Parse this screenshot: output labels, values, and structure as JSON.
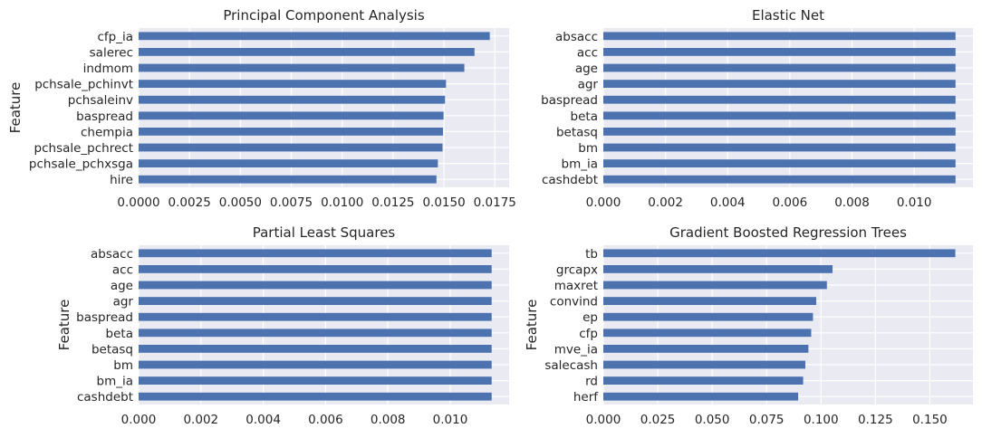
{
  "chart_data": [
    {
      "type": "bar",
      "orientation": "horizontal",
      "title": "Principal Component Analysis",
      "xlabel": "",
      "ylabel": "Feature",
      "categories": [
        "cfp_ia",
        "salerec",
        "indmom",
        "pchsale_pchinvt",
        "pchsaleinv",
        "baspread",
        "chempia",
        "pchsale_pchrect",
        "pchsale_pchxsga",
        "hire"
      ],
      "values": [
        0.01725,
        0.0165,
        0.016,
        0.0151,
        0.01505,
        0.01498,
        0.01495,
        0.01493,
        0.0147,
        0.01463
      ],
      "xlim": [
        0.0,
        0.0182
      ],
      "xticks": [
        0.0,
        0.0025,
        0.005,
        0.0075,
        0.01,
        0.0125,
        0.015,
        0.0175
      ],
      "xtick_labels": [
        "0.0000",
        "0.0025",
        "0.0050",
        "0.0075",
        "0.0100",
        "0.0125",
        "0.0150",
        "0.0175"
      ],
      "color": "#4c72b0",
      "grid": true
    },
    {
      "type": "bar",
      "orientation": "horizontal",
      "title": "Elastic Net",
      "xlabel": "",
      "ylabel": "",
      "categories": [
        "absacc",
        "acc",
        "age",
        "agr",
        "baspread",
        "beta",
        "betasq",
        "bm",
        "bm_ia",
        "cashdebt"
      ],
      "values": [
        0.01133,
        0.01133,
        0.01133,
        0.01133,
        0.01133,
        0.01133,
        0.01133,
        0.01133,
        0.01133,
        0.01133
      ],
      "xlim": [
        0.0,
        0.01189
      ],
      "xticks": [
        0.0,
        0.002,
        0.004,
        0.006,
        0.008,
        0.01
      ],
      "xtick_labels": [
        "0.000",
        "0.002",
        "0.004",
        "0.006",
        "0.008",
        "0.010"
      ],
      "color": "#4c72b0",
      "grid": true
    },
    {
      "type": "bar",
      "orientation": "horizontal",
      "title": "Partial Least Squares",
      "xlabel": "",
      "ylabel": "Feature",
      "categories": [
        "absacc",
        "acc",
        "age",
        "agr",
        "baspread",
        "beta",
        "betasq",
        "bm",
        "bm_ia",
        "cashdebt"
      ],
      "values": [
        0.01133,
        0.01133,
        0.01133,
        0.01133,
        0.01133,
        0.01133,
        0.01133,
        0.01133,
        0.01133,
        0.01133
      ],
      "xlim": [
        0.0,
        0.01189
      ],
      "xticks": [
        0.0,
        0.002,
        0.004,
        0.006,
        0.008,
        0.01
      ],
      "xtick_labels": [
        "0.000",
        "0.002",
        "0.004",
        "0.006",
        "0.008",
        "0.010"
      ],
      "color": "#4c72b0",
      "grid": true
    },
    {
      "type": "bar",
      "orientation": "horizontal",
      "title": "Gradient Boosted Regression Trees",
      "xlabel": "",
      "ylabel": "Feature",
      "categories": [
        "tb",
        "grcapx",
        "maxret",
        "convind",
        "ep",
        "cfp",
        "mve_ia",
        "salecash",
        "rd",
        "herf"
      ],
      "values": [
        0.1617,
        0.1053,
        0.1027,
        0.0978,
        0.0963,
        0.0955,
        0.0942,
        0.0928,
        0.0918,
        0.0895
      ],
      "xlim": [
        0.0,
        0.1698
      ],
      "xticks": [
        0.0,
        0.025,
        0.05,
        0.075,
        0.1,
        0.125,
        0.15
      ],
      "xtick_labels": [
        "0.000",
        "0.025",
        "0.050",
        "0.075",
        "0.100",
        "0.125",
        "0.150"
      ],
      "color": "#4c72b0",
      "grid": true
    }
  ]
}
